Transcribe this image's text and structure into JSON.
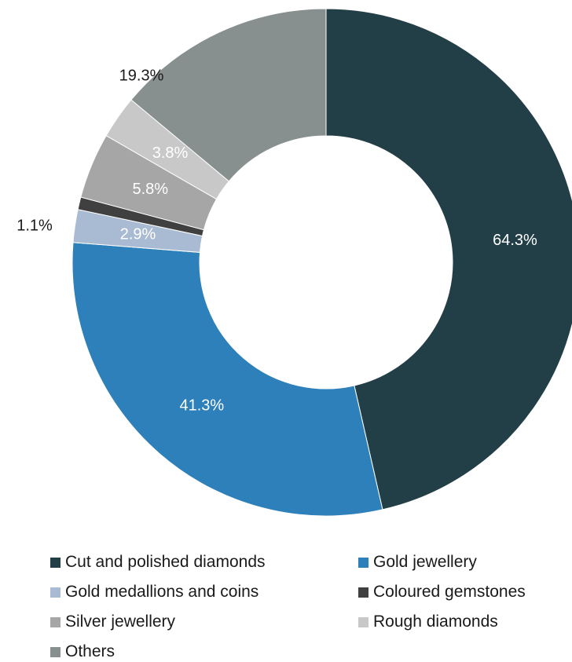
{
  "chart_data": {
    "type": "pie",
    "donut": true,
    "title": "",
    "legend_position": "bottom",
    "slices": [
      {
        "name": "Cut and polished diamonds",
        "value": 64.3,
        "label": "64.3%",
        "color": "#223e46"
      },
      {
        "name": "Gold jewellery",
        "value": 41.3,
        "label": "41.3%",
        "color": "#2e80ba"
      },
      {
        "name": "Gold medallions and coins",
        "value": 2.9,
        "label": "2.9%",
        "color": "#a9bbd2"
      },
      {
        "name": "Coloured gemstones",
        "value": 1.1,
        "label": "1.1%",
        "color": "#404040"
      },
      {
        "name": "Silver jewellery",
        "value": 5.8,
        "label": "5.8%",
        "color": "#a6a6a6"
      },
      {
        "name": "Rough diamonds",
        "value": 3.8,
        "label": "3.8%",
        "color": "#c8c8c8"
      },
      {
        "name": "Others",
        "value": 19.3,
        "label": "19.3%",
        "color": "#87908f"
      }
    ]
  }
}
